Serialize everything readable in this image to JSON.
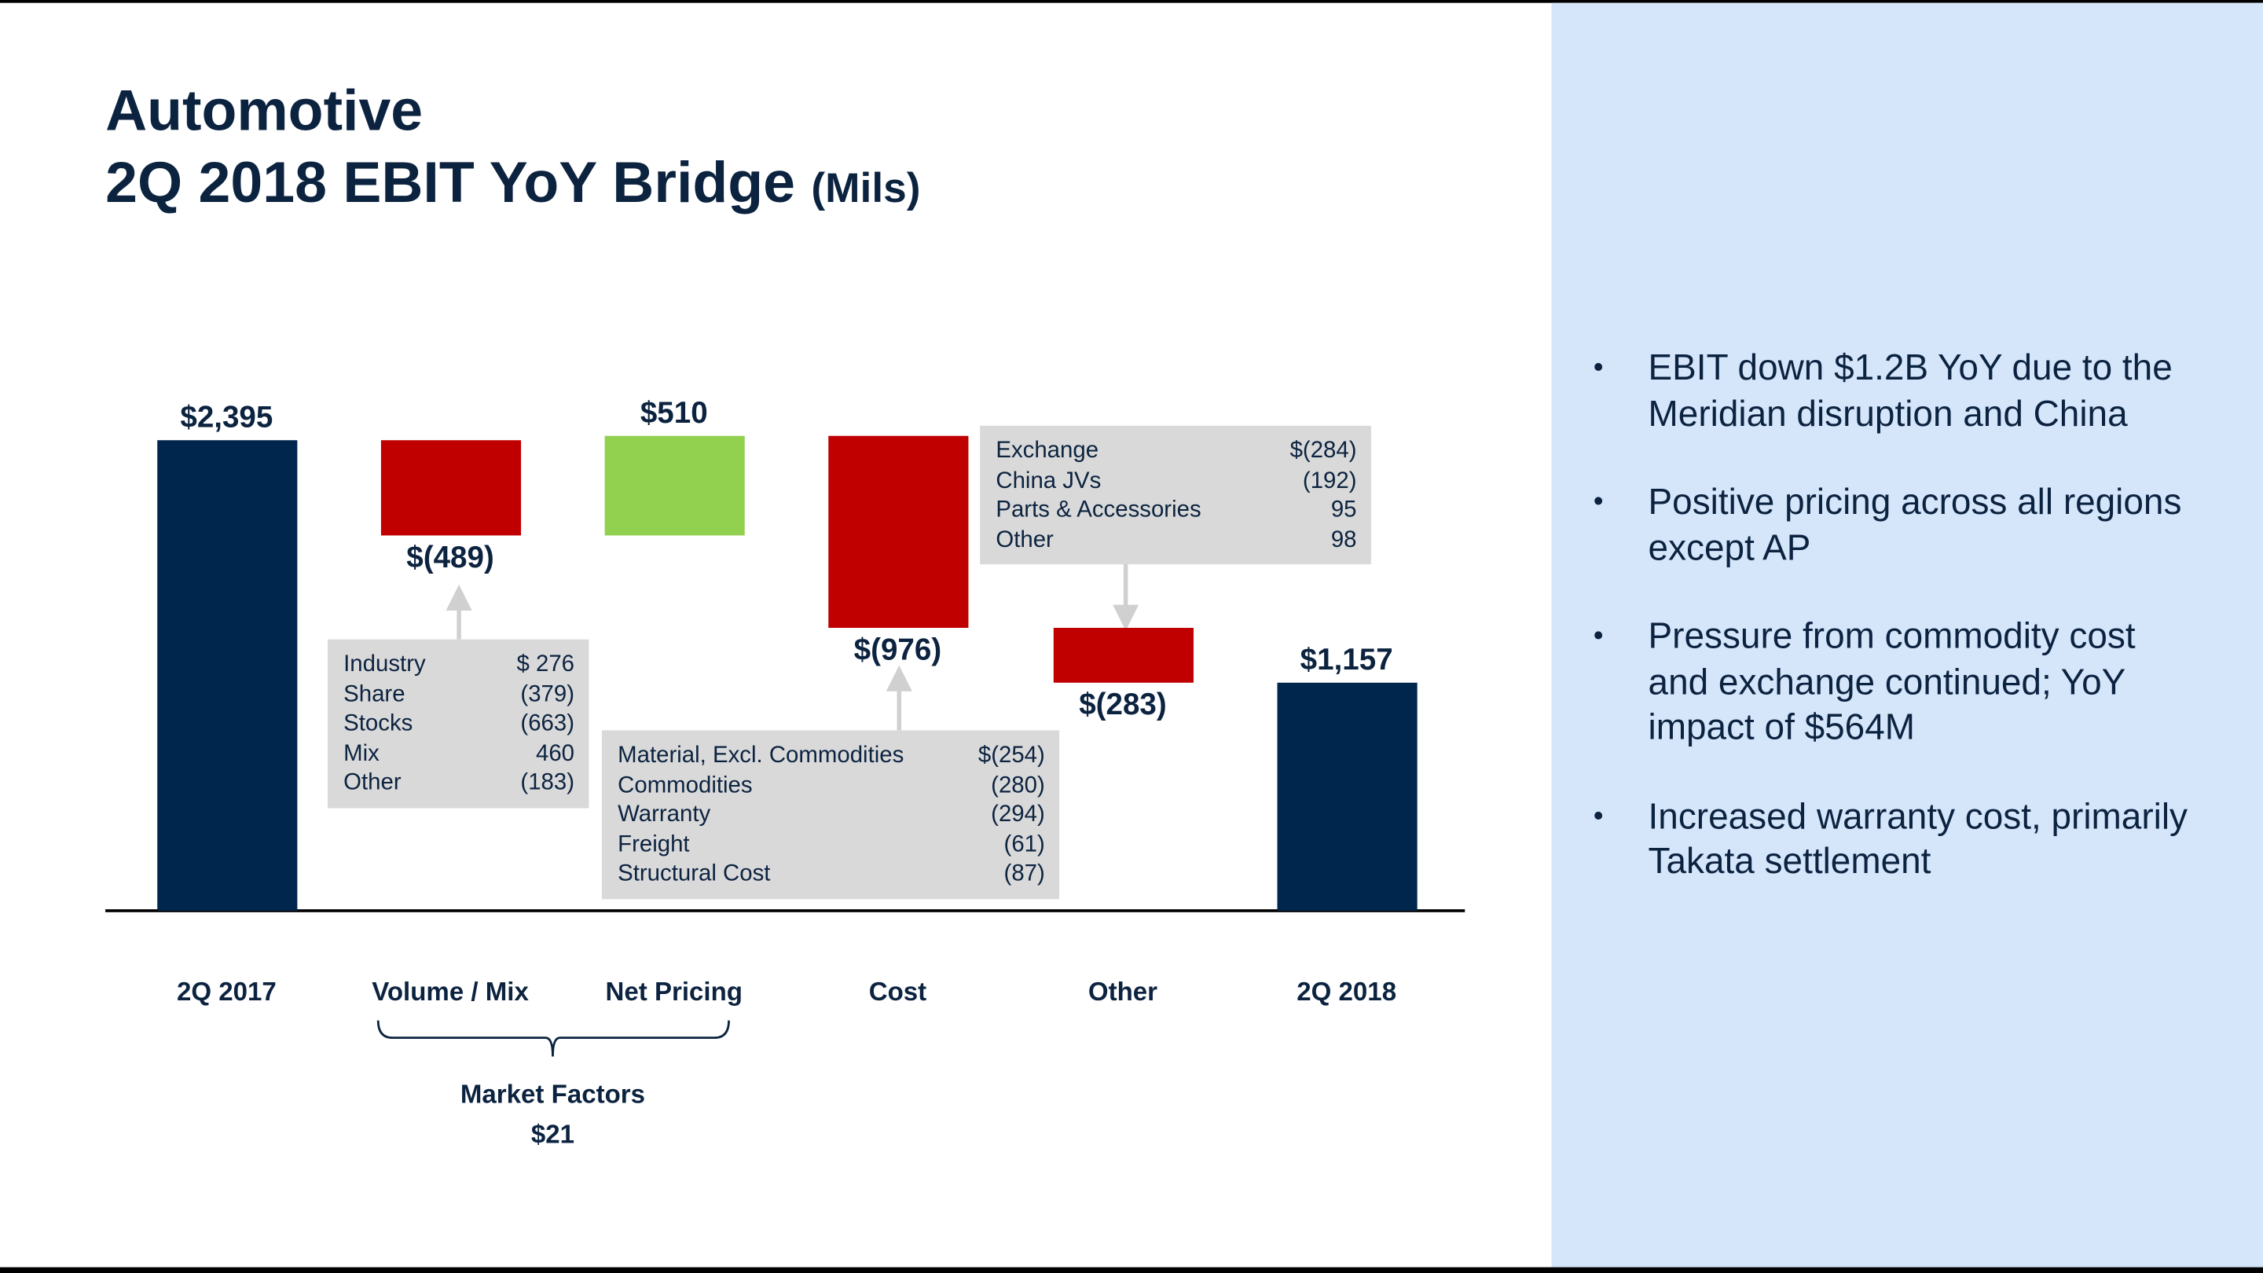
{
  "title": {
    "line1": "Automotive",
    "line2": "2Q 2018 EBIT YoY Bridge",
    "unit": "(Mils)"
  },
  "chart_data": {
    "type": "waterfall",
    "categories": [
      "2Q 2017",
      "Volume / Mix",
      "Net Pricing",
      "Cost",
      "Other",
      "2Q 2018"
    ],
    "values": [
      2395,
      -489,
      510,
      -976,
      -283,
      1157
    ],
    "value_labels": [
      "$2,395",
      "$(489)",
      "$510",
      "$(976)",
      "$(283)",
      "$1,157"
    ],
    "totals": [
      true,
      false,
      false,
      false,
      false,
      true
    ],
    "colors": {
      "total": "#00264d",
      "increase": "#92d050",
      "decrease": "#c00000"
    },
    "breakdowns": [
      null,
      [
        {
          "label": "Industry",
          "value": "$ 276"
        },
        {
          "label": "Share",
          "value": "(379)"
        },
        {
          "label": "Stocks",
          "value": "(663)"
        },
        {
          "label": "Mix",
          "value": "460"
        },
        {
          "label": "Other",
          "value": "(183)"
        }
      ],
      null,
      [
        {
          "label": "Material, Excl. Commodities",
          "value": "$(254)"
        },
        {
          "label": "Commodities",
          "value": "(280)"
        },
        {
          "label": "Warranty",
          "value": "(294)"
        },
        {
          "label": "Freight",
          "value": "(61)"
        },
        {
          "label": "Structural Cost",
          "value": "(87)"
        }
      ],
      [
        {
          "label": "Exchange",
          "value": "$(284)"
        },
        {
          "label": "China JVs",
          "value": "(192)"
        },
        {
          "label": "Parts & Accessories",
          "value": "95"
        },
        {
          "label": "Other",
          "value": "98"
        }
      ],
      null
    ],
    "group": {
      "label": "Market Factors",
      "total_label": "$21"
    }
  },
  "bullets": [
    "EBIT down $1.2B YoY due to the Meridian disruption and China",
    "Positive pricing across all regions except AP",
    "Pressure from commodity cost and exchange continued; YoY impact of $564M",
    "Increased warranty cost, primarily Takata settlement"
  ]
}
